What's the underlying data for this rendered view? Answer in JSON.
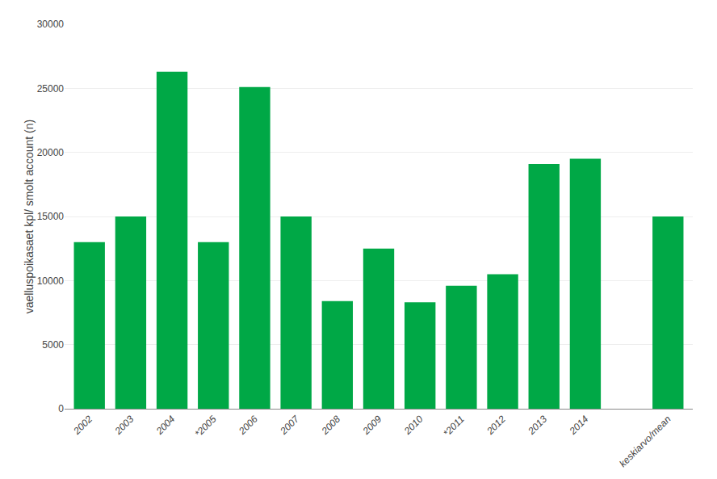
{
  "chart_data": {
    "type": "bar",
    "categories": [
      "2002",
      "2003",
      "2004",
      "*2005",
      "2006",
      "2007",
      "2008",
      "2009",
      "2010",
      "*2011",
      "2012",
      "2013",
      "2014",
      null,
      "keskiarvo/mean"
    ],
    "values": [
      13000,
      15000,
      26300,
      13000,
      25100,
      15000,
      8400,
      12500,
      8300,
      9600,
      10500,
      19100,
      19500,
      null,
      15000
    ],
    "color": "#00a846",
    "ylabel": "vaelluspoikasaet kpl/ smolt account (n)",
    "ylim": [
      0,
      30000
    ],
    "yticks": [
      0,
      5000,
      10000,
      15000,
      20000,
      25000,
      30000
    ],
    "grid": true
  }
}
